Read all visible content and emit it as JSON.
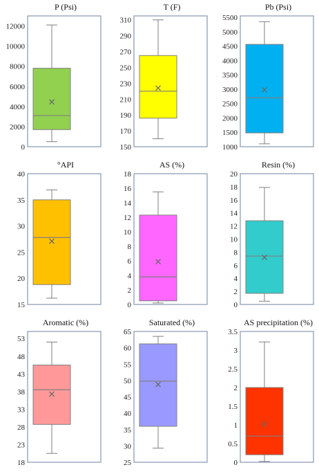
{
  "chart_data": [
    {
      "type": "box",
      "title": "P (Psi)",
      "ylim": [
        0,
        13000
      ],
      "ticks": [
        "0",
        "2000",
        "4000",
        "6000",
        "8000",
        "10000",
        "12000"
      ],
      "tick_values": [
        0,
        2000,
        4000,
        6000,
        8000,
        10000,
        12000
      ],
      "min": 500,
      "q1": 1700,
      "median": 3100,
      "q3": 7800,
      "max": 12100,
      "mean": 4450,
      "color": "#92d050"
    },
    {
      "type": "box",
      "title": "T (F)",
      "ylim": [
        150,
        315
      ],
      "ticks": [
        "150",
        "170",
        "190",
        "210",
        "230",
        "250",
        "270",
        "290",
        "310"
      ],
      "tick_values": [
        150,
        170,
        190,
        210,
        230,
        250,
        270,
        290,
        310
      ],
      "min": 160,
      "q1": 186,
      "median": 220,
      "q3": 265,
      "max": 310,
      "mean": 224,
      "color": "#ffff00"
    },
    {
      "type": "box",
      "title": "Pb (Psi)",
      "ylim": [
        1000,
        5550
      ],
      "ticks": [
        "1000",
        "1500",
        "2000",
        "2500",
        "3000",
        "3500",
        "4000",
        "4500",
        "5000",
        "5500"
      ],
      "tick_values": [
        1000,
        1500,
        2000,
        2500,
        3000,
        3500,
        4000,
        4500,
        5000,
        5500
      ],
      "min": 1100,
      "q1": 1480,
      "median": 2700,
      "q3": 4560,
      "max": 5350,
      "mean": 2980,
      "color": "#00b0f0"
    },
    {
      "type": "box",
      "title": "°API",
      "ylim": [
        15,
        40
      ],
      "ticks": [
        "15",
        "20",
        "25",
        "30",
        "35",
        "40"
      ],
      "tick_values": [
        15,
        20,
        25,
        30,
        35,
        40
      ],
      "min": 16.2,
      "q1": 18.8,
      "median": 27.8,
      "q3": 35,
      "max": 36.9,
      "mean": 27.1,
      "color": "#ffc000"
    },
    {
      "type": "box",
      "title": "AS (%)",
      "ylim": [
        0,
        18
      ],
      "ticks": [
        "0",
        "2",
        "4",
        "6",
        "8",
        "10",
        "12",
        "14",
        "16",
        "18"
      ],
      "tick_values": [
        0,
        2,
        4,
        6,
        8,
        10,
        12,
        14,
        16,
        18
      ],
      "min": 0.2,
      "q1": 0.5,
      "median": 3.8,
      "q3": 12.3,
      "max": 15.5,
      "mean": 5.9,
      "color": "#ff66ff"
    },
    {
      "type": "box",
      "title": "Resin (%)",
      "ylim": [
        0,
        20
      ],
      "ticks": [
        "0",
        "2",
        "4",
        "6",
        "8",
        "10",
        "12",
        "14",
        "16",
        "18",
        "20"
      ],
      "tick_values": [
        0,
        2,
        4,
        6,
        8,
        10,
        12,
        14,
        16,
        18,
        20
      ],
      "min": 0.5,
      "q1": 1.7,
      "median": 7.4,
      "q3": 12.8,
      "max": 17.9,
      "mean": 7.2,
      "color": "#33cccc"
    },
    {
      "type": "box",
      "title": "Aromatic (%)",
      "ylim": [
        18,
        55
      ],
      "ticks": [
        "18",
        "23",
        "28",
        "33",
        "38",
        "43",
        "48",
        "53"
      ],
      "tick_values": [
        18,
        23,
        28,
        33,
        38,
        43,
        48,
        53
      ],
      "min": 20.5,
      "q1": 28.7,
      "median": 38.5,
      "q3": 45.5,
      "max": 52,
      "mean": 37.3,
      "color": "#ff9999"
    },
    {
      "type": "box",
      "title": "Saturated (%)",
      "ylim": [
        25,
        65
      ],
      "ticks": [
        "25",
        "30",
        "35",
        "40",
        "45",
        "50",
        "55",
        "60",
        "65"
      ],
      "tick_values": [
        25,
        30,
        35,
        40,
        45,
        50,
        55,
        60,
        65
      ],
      "min": 29.3,
      "q1": 36,
      "median": 49.8,
      "q3": 61.2,
      "max": 63.5,
      "mean": 48.8,
      "color": "#9999ff"
    },
    {
      "type": "box",
      "title": "AS precipitation (%)",
      "ylim": [
        0,
        3.5
      ],
      "ticks": [
        "0",
        "0.5",
        "1",
        "1.5",
        "2",
        "2.5",
        "3",
        "3.5"
      ],
      "tick_values": [
        0,
        0.5,
        1,
        1.5,
        2,
        2.5,
        3,
        3.5
      ],
      "min": 0.02,
      "q1": 0.2,
      "median": 0.7,
      "q3": 2.0,
      "max": 3.22,
      "mean": 1.02,
      "color": "#ff3300"
    }
  ]
}
